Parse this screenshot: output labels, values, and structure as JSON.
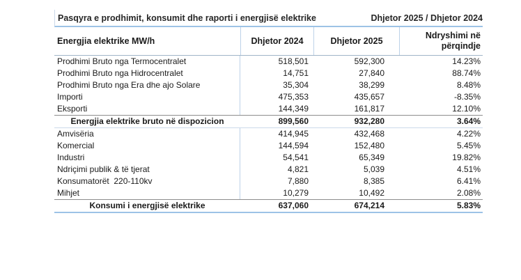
{
  "title": {
    "left": "Pasqyra e prodhimit, konsumit dhe raporti i energjisë elektrike",
    "right": "Dhjetor 2025 / Dhjetor 2024"
  },
  "table": {
    "columns": {
      "col1": "Energjia elektrike MW/h",
      "col2": "Dhjetor 2024",
      "col3": "Dhjetor 2025",
      "col4": "Ndryshimi në përqindje"
    },
    "rows": [
      {
        "label": "Prodhimi Bruto nga Termocentralet",
        "dec2024": "518,501",
        "dec2025": "592,300",
        "change": "14.23%",
        "type": "data"
      },
      {
        "label": "Prodhimi Bruto nga Hidrocentralet",
        "dec2024": "14,751",
        "dec2025": "27,840",
        "change": "88.74%",
        "type": "data"
      },
      {
        "label": "Prodhimi Bruto nga Era dhe ajo Solare",
        "dec2024": "35,304",
        "dec2025": "38,299",
        "change": "8.48%",
        "type": "data"
      },
      {
        "label": "Importi",
        "dec2024": "475,353",
        "dec2025": "435,657",
        "change": "-8.35%",
        "type": "data"
      },
      {
        "label": "Eksporti",
        "dec2024": "144,349",
        "dec2025": "161,817",
        "change": "12.10%",
        "type": "data"
      },
      {
        "label": "Energjia elektrike bruto në dispozicion",
        "dec2024": "899,560",
        "dec2025": "932,280",
        "change": "3.64%",
        "type": "subtotal"
      },
      {
        "label": "Amvisëria",
        "dec2024": "414,945",
        "dec2025": "432,468",
        "change": "4.22%",
        "type": "data"
      },
      {
        "label": "Komercial",
        "dec2024": "144,594",
        "dec2025": "152,480",
        "change": "5.45%",
        "type": "data"
      },
      {
        "label": "Industri",
        "dec2024": "54,541",
        "dec2025": "65,349",
        "change": "19.82%",
        "type": "data"
      },
      {
        "label": "Ndriçimi publik & të tjerat",
        "dec2024": "4,821",
        "dec2025": "5,039",
        "change": "4.51%",
        "type": "data"
      },
      {
        "label": "Konsumatorët  220-110kv",
        "dec2024": "7,880",
        "dec2025": "8,385",
        "change": "6.41%",
        "type": "data"
      },
      {
        "label": "Mihjet",
        "dec2024": "10,279",
        "dec2025": "10,492",
        "change": "2.08%",
        "type": "data"
      },
      {
        "label": "Konsumi i energjisë elektrike",
        "dec2024": "637,060",
        "dec2025": "674,214",
        "change": "5.83%",
        "type": "total"
      }
    ]
  },
  "colors": {
    "line_blue": "#9DC3E6",
    "sep_blue": "#BDD2E8",
    "line_gray": "#8C8C8C",
    "line_light": "#CBD9EA",
    "header_line": "#A0B4C8",
    "text": "#1A1A1A"
  }
}
